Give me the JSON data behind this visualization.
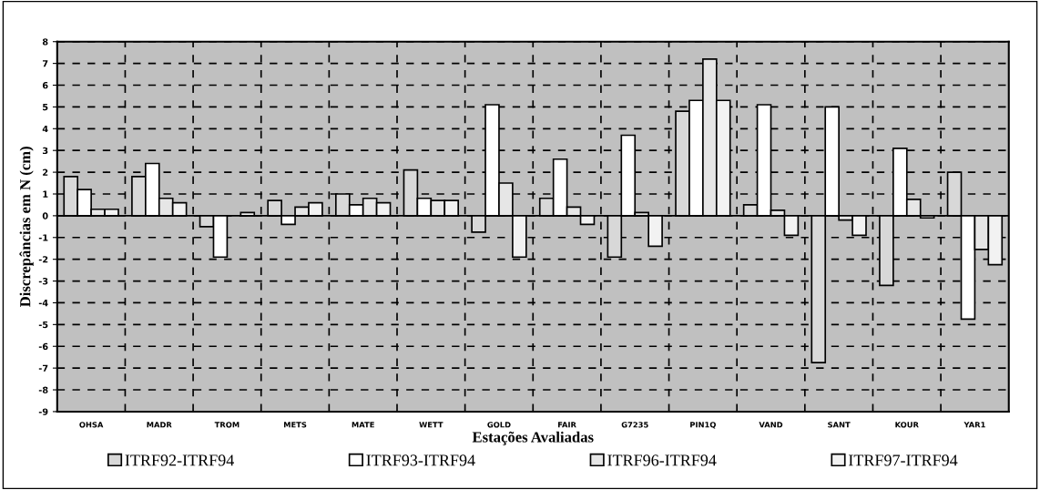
{
  "chart_data": {
    "type": "bar",
    "xlabel": "Estações Avaliadas",
    "ylabel": "Discrepâncias em N (cm)",
    "categories": [
      "OHSA",
      "MADR",
      "TROM",
      "METS",
      "MATE",
      "WETT",
      "GOLD",
      "FAIR",
      "G7235",
      "PIN1Q",
      "VAND",
      "SANT",
      "KOUR",
      "YAR1"
    ],
    "series": [
      {
        "name": "ITRF92-ITRF94",
        "color": "#d8d8d8",
        "values": [
          1.8,
          1.8,
          -0.5,
          0.7,
          1.0,
          2.1,
          -0.75,
          0.8,
          -1.9,
          4.8,
          0.5,
          -6.75,
          -3.2,
          2.0
        ]
      },
      {
        "name": "ITRF93-ITRF94",
        "color": "#ffffff",
        "values": [
          1.2,
          2.4,
          -1.9,
          -0.4,
          0.5,
          0.8,
          5.1,
          2.6,
          3.7,
          5.3,
          5.1,
          5.0,
          3.1,
          -4.75
        ]
      },
      {
        "name": "ITRF96-ITRF94",
        "color": "#e6e6e6",
        "values": [
          0.3,
          0.8,
          null,
          0.4,
          0.8,
          0.7,
          1.5,
          0.4,
          0.15,
          7.2,
          0.25,
          -0.2,
          0.75,
          -1.55
        ]
      },
      {
        "name": "ITRF97-ITRF94",
        "color": "#f2f2f2",
        "values": [
          0.3,
          0.6,
          0.15,
          0.6,
          0.6,
          0.7,
          -1.9,
          -0.4,
          -1.4,
          5.3,
          -0.9,
          -0.9,
          -0.1,
          -2.25
        ]
      }
    ],
    "ylim": [
      -9,
      8
    ],
    "yticks": [
      -9,
      -8,
      -7,
      -6,
      -5,
      -4,
      -3,
      -2,
      -1,
      0,
      1,
      2,
      3,
      4,
      5,
      6,
      7,
      8
    ],
    "grid": true,
    "legend": "bottom"
  }
}
